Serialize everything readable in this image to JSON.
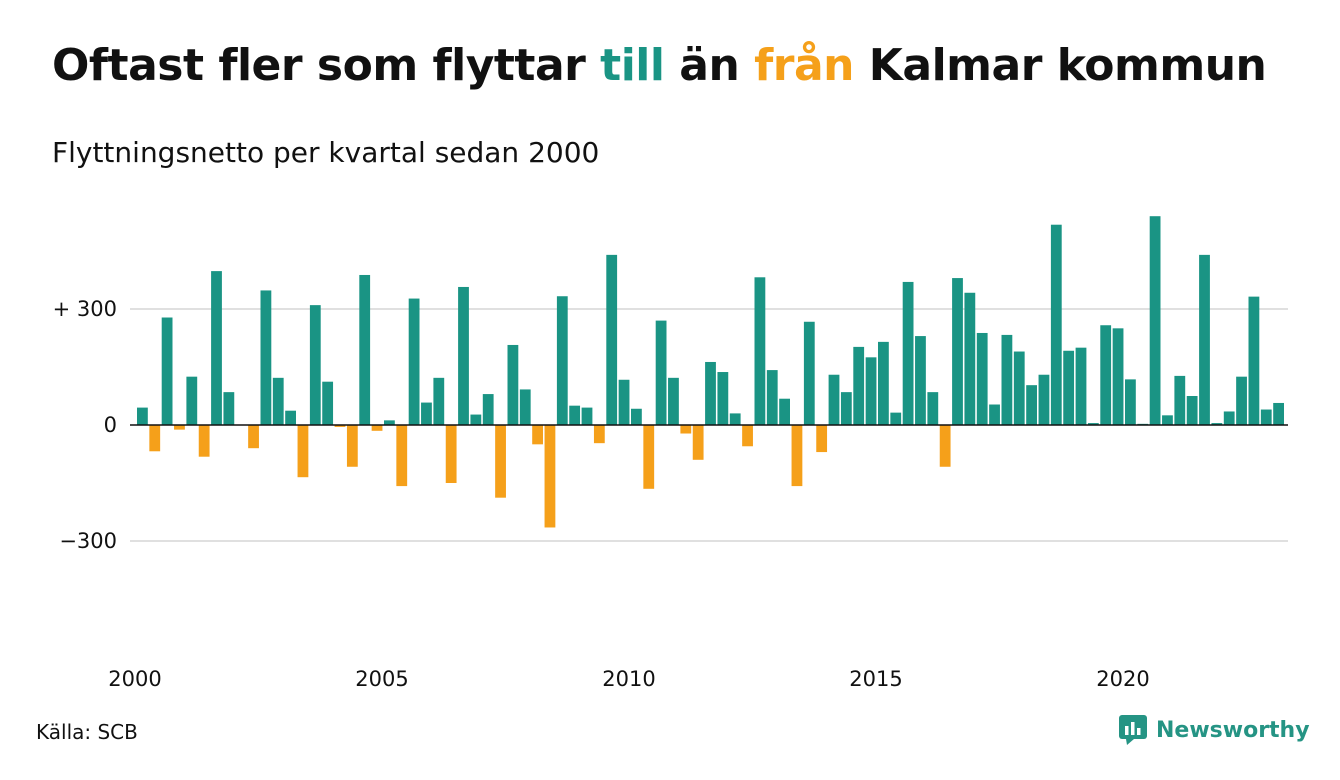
{
  "header": {
    "title_part1": "Oftast fler som flyttar ",
    "title_till": "till",
    "title_part2": " än ",
    "title_fran": "från",
    "title_part3": " Kalmar kommun",
    "subtitle": "Flyttningsnetto per kvartal sedan 2000"
  },
  "footer": {
    "source": "Källa: SCB",
    "brand": "Newsworthy",
    "brand_icon": "bar-chart-speech-bubble-icon"
  },
  "colors": {
    "positive": "#1a9484",
    "negative": "#f5a01a",
    "gridline": "#e0e0e0",
    "brand": "#259484"
  },
  "chart_data": {
    "type": "bar",
    "title": "Oftast fler som flyttar till än från Kalmar kommun",
    "subtitle": "Flyttningsnetto per kvartal sedan 2000",
    "xlabel": "",
    "ylabel": "",
    "start_year": 2000,
    "quarters_per_year": 4,
    "x_ticks": [
      "2000",
      "2005",
      "2010",
      "2015",
      "2020"
    ],
    "y_ticks": [
      {
        "value": 300,
        "label": "+ 300"
      },
      {
        "value": 0,
        "label": "0"
      },
      {
        "value": -300,
        "label": "−300"
      }
    ],
    "ylim": [
      -550,
      560
    ],
    "grid": true,
    "legend": "none",
    "values": [
      45,
      -68,
      278,
      -12,
      125,
      -82,
      398,
      85,
      0,
      -60,
      348,
      122,
      37,
      -135,
      310,
      112,
      -5,
      -108,
      388,
      -15,
      12,
      -158,
      327,
      58,
      122,
      -150,
      357,
      27,
      80,
      -188,
      207,
      92,
      -50,
      -265,
      333,
      50,
      45,
      -47,
      440,
      117,
      42,
      -165,
      270,
      122,
      -22,
      -90,
      163,
      137,
      30,
      -55,
      382,
      142,
      68,
      -158,
      267,
      -70,
      130,
      85,
      202,
      175,
      215,
      32,
      370,
      230,
      85,
      -108,
      380,
      342,
      238,
      53,
      233,
      190,
      103,
      130,
      518,
      192,
      200,
      5,
      258,
      250,
      118,
      3,
      540,
      25,
      127,
      75,
      440,
      5,
      35,
      125,
      332,
      40,
      57
    ]
  }
}
